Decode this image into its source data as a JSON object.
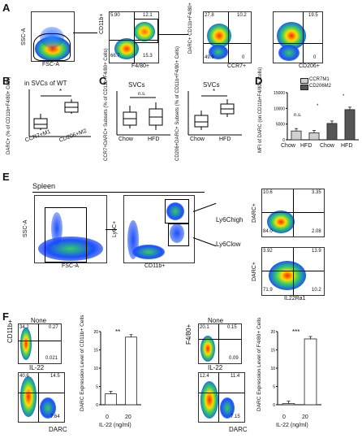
{
  "panels": {
    "A": {
      "letter": "A",
      "plot1": {
        "x": "FSC-A",
        "y": "SSC-A"
      },
      "plot2": {
        "x": "F4/80+",
        "y": "CD11b+",
        "q": [
          "5.90",
          "12.1",
          "66.7",
          "15.3"
        ]
      },
      "plot3": {
        "x": "CCR7+",
        "y": "DARC+ CD11b+F4/80+",
        "q": [
          "27.8",
          "10.2",
          "49.6",
          "0"
        ]
      },
      "plot4": {
        "x": "CD206+",
        "q": [
          "19.5",
          "0"
        ]
      }
    },
    "B": {
      "letter": "B",
      "title": "in SVCs of WT",
      "ylabel": "DARC+ (% of CD11b+F4/80+ Cells)",
      "categories": [
        "CCR7+M1",
        "CD206+M2"
      ],
      "sig": "*"
    },
    "C": {
      "letter": "C",
      "title1": "SVCs",
      "title2": "SVCs",
      "ylabel1": "CCR7+DARC+ Subsets (% of CD11b+F4/80+ Cells)",
      "ylabel2": "CD206+DARC+ Subsets (% of CD11b+F4/80+ Cells)",
      "categories": [
        "Chow",
        "HFD"
      ],
      "sig1": "n.s.",
      "sig2": "*"
    },
    "D": {
      "letter": "D",
      "ylabel": "MFI of DARC (on CD11b+F4/80+ Cells)",
      "legend": [
        "CCR7M1",
        "CD206M2"
      ],
      "categories": [
        "Chow",
        "HFD",
        "Chow",
        "HFD"
      ],
      "sig": [
        "n.s.",
        "*",
        "*"
      ]
    },
    "E": {
      "letter": "E",
      "header": "Spleen",
      "plot1": {
        "x": "FSC-A",
        "y": "SSC-A"
      },
      "plot2": {
        "x": "CD11b+",
        "y": "Ly6C+"
      },
      "gate_high": "Ly6Chigh",
      "gate_low": "Ly6Clow",
      "high": {
        "y": "DARC+",
        "q": [
          "10.6",
          "3.35",
          "84.0",
          "2.08"
        ]
      },
      "low": {
        "y": "DARC+",
        "x": "IL22Ra1",
        "q": [
          "3.92",
          "13.9",
          "71.9",
          "10.2"
        ]
      }
    },
    "F": {
      "letter": "F",
      "left": {
        "none_label": "None",
        "il22_label": "IL-22",
        "y": "CD11b+",
        "x": "DARC",
        "q_none": [
          "34.2",
          "0.27",
          "0.021"
        ],
        "q_il22": [
          "40.6",
          "14.5",
          "7.64"
        ],
        "ylabel": "DARC Expression Level of CD11b+ Cells",
        "sig": "**"
      },
      "right": {
        "none_label": "None",
        "il22_label": "IL-22",
        "y": "F4/80+",
        "x": "DARC",
        "q_none": [
          "20.1",
          "0.15",
          "0.09"
        ],
        "q_il22": [
          "12.4",
          "11.4",
          "7.15"
        ],
        "ylabel": "DARC Expression Level of F4/80+ Cells",
        "sig": "***"
      },
      "xlabel": "IL-22 (ng/ml)",
      "categories": [
        "0",
        "20"
      ]
    }
  },
  "chart_data": [
    {
      "type": "bar",
      "panel": "D",
      "categories": [
        "Chow",
        "HFD",
        "Chow",
        "HFD"
      ],
      "series": [
        {
          "name": "CCR7M1",
          "values": [
            2800,
            2200,
            null,
            null
          ]
        },
        {
          "name": "CD206M2",
          "values": [
            null,
            null,
            5200,
            9600
          ]
        }
      ],
      "ylim": [
        0,
        15000
      ],
      "yticks": [
        0,
        5000,
        10000,
        15000
      ]
    },
    {
      "type": "bar",
      "panel": "F-left",
      "categories": [
        "0",
        "20"
      ],
      "values": [
        3,
        18.5
      ],
      "ylim": [
        0,
        20
      ],
      "yticks": [
        0,
        5,
        10,
        15,
        20
      ]
    },
    {
      "type": "bar",
      "panel": "F-right",
      "categories": [
        "0",
        "20"
      ],
      "values": [
        0.3,
        18
      ],
      "ylim": [
        0,
        20
      ],
      "yticks": [
        0,
        5,
        10,
        15,
        20
      ]
    }
  ]
}
